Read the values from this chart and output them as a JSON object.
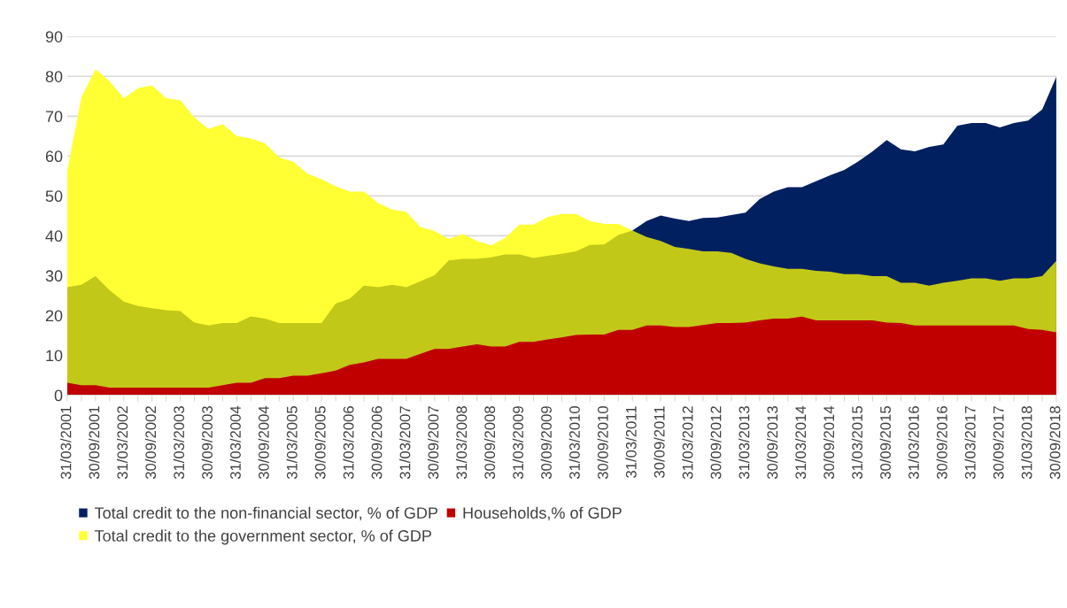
{
  "chart_data": {
    "type": "area",
    "categories": [
      "31/03/2001",
      null,
      "30/09/2001",
      null,
      "31/03/2002",
      null,
      "30/09/2002",
      null,
      "31/03/2003",
      null,
      "30/09/2003",
      null,
      "31/03/2004",
      null,
      "30/09/2004",
      null,
      "31/03/2005",
      null,
      "30/09/2005",
      null,
      "31/03/2006",
      null,
      "30/09/2006",
      null,
      "31/03/2007",
      null,
      "30/09/2007",
      null,
      "31/03/2008",
      null,
      "30/09/2008",
      null,
      "31/03/2009",
      null,
      "30/09/2009",
      null,
      "31/03/2010",
      null,
      "30/09/2010",
      null,
      "31/03/2011",
      null,
      "30/09/2011",
      null,
      "31/03/2012",
      null,
      "30/09/2012",
      null,
      "31/03/2013",
      null,
      "30/09/2013",
      null,
      "31/03/2014",
      null,
      "30/09/2014",
      null,
      "31/03/2015",
      null,
      "30/09/2015",
      null,
      "31/03/2016",
      null,
      "30/09/2016",
      null,
      "31/03/2017",
      null,
      "30/09/2017",
      null,
      "31/03/2018",
      null,
      "30/09/2018"
    ],
    "series": [
      {
        "name": "Total credit to the non-financial sector, % of GDP",
        "color": "#002060",
        "values": [
          null,
          null,
          null,
          null,
          null,
          null,
          null,
          null,
          null,
          null,
          null,
          null,
          null,
          null,
          null,
          null,
          null,
          null,
          null,
          null,
          null,
          null,
          null,
          null,
          null,
          null,
          null,
          null,
          null,
          null,
          null,
          null,
          null,
          null,
          null,
          null,
          null,
          null,
          null,
          null,
          41.3,
          43.7,
          45.1,
          44.3,
          43.7,
          44.5,
          44.6,
          45.2,
          45.8,
          49.2,
          51.1,
          52.2,
          52.2,
          53.7,
          55.2,
          56.5,
          58.7,
          61.2,
          64.0,
          61.7,
          61.2,
          62.3,
          62.9,
          67.6,
          68.3,
          68.3,
          67.2,
          68.3,
          68.9,
          71.7,
          79.9
        ]
      },
      {
        "name": "Total credit to the government sector, % of GDP",
        "color": "#ffff33",
        "values": [
          56.3,
          74.7,
          81.8,
          78.8,
          74.5,
          77.0,
          77.7,
          74.5,
          74.0,
          69.7,
          66.8,
          68.0,
          65.0,
          64.4,
          63.2,
          59.7,
          58.6,
          55.6,
          54.2,
          52.4,
          51.1,
          51.1,
          48.2,
          46.6,
          46.0,
          42.2,
          41.2,
          39.2,
          40.4,
          38.7,
          37.6,
          39.5,
          42.8,
          42.8,
          44.7,
          45.5,
          45.5,
          43.7,
          43.0,
          43.0,
          41.3,
          null,
          null,
          null,
          null,
          null,
          null,
          null,
          null,
          null,
          null,
          null,
          null,
          null,
          null,
          null,
          null,
          null,
          null,
          null,
          null,
          null,
          null,
          null,
          null,
          null,
          null,
          null,
          null,
          null,
          null
        ]
      },
      {
        "color": "#c2c818",
        "values": [
          27.1,
          27.7,
          29.9,
          26.3,
          23.5,
          22.4,
          21.8,
          21.3,
          21.1,
          18.2,
          17.5,
          18.1,
          18.1,
          19.8,
          19.2,
          18.1,
          18.1,
          18.1,
          18.1,
          23.0,
          24.2,
          27.5,
          27.1,
          27.7,
          27.1,
          28.6,
          30.1,
          33.8,
          34.2,
          34.2,
          34.6,
          35.3,
          35.3,
          34.4,
          35.0,
          35.5,
          36.1,
          37.7,
          37.8,
          40.2,
          41.3,
          39.7,
          38.7,
          37.2,
          36.7,
          36.1,
          36.1,
          35.7,
          34.2,
          33.1,
          32.3,
          31.7,
          31.7,
          31.2,
          31.0,
          30.4,
          30.4,
          29.9,
          29.9,
          28.2,
          28.2,
          27.5,
          28.2,
          28.7,
          29.3,
          29.3,
          28.7,
          29.3,
          29.3,
          29.9,
          33.7
        ]
      },
      {
        "name": "Households,% of GDP",
        "color": "#c00000",
        "values": [
          3.1,
          2.5,
          2.5,
          1.9,
          1.9,
          1.9,
          1.9,
          1.9,
          1.9,
          1.9,
          1.9,
          2.5,
          3.1,
          3.1,
          4.3,
          4.3,
          4.9,
          4.9,
          5.5,
          6.2,
          7.6,
          8.2,
          9.1,
          9.1,
          9.1,
          10.4,
          11.6,
          11.6,
          12.2,
          12.8,
          12.2,
          12.2,
          13.4,
          13.4,
          14.0,
          14.5,
          15.1,
          15.2,
          15.2,
          16.4,
          16.4,
          17.5,
          17.5,
          17.1,
          17.1,
          17.6,
          18.1,
          18.1,
          18.2,
          18.8,
          19.2,
          19.2,
          19.7,
          18.8,
          18.8,
          18.8,
          18.8,
          18.8,
          18.2,
          18.1,
          17.5,
          17.5,
          17.5,
          17.5,
          17.5,
          17.5,
          17.5,
          17.5,
          16.6,
          16.4,
          15.8
        ]
      }
    ],
    "ylim": [
      0,
      90
    ],
    "yticks": [
      0,
      10,
      20,
      30,
      40,
      50,
      60,
      70,
      80,
      90
    ],
    "grid": "y",
    "legend": "bottom"
  }
}
